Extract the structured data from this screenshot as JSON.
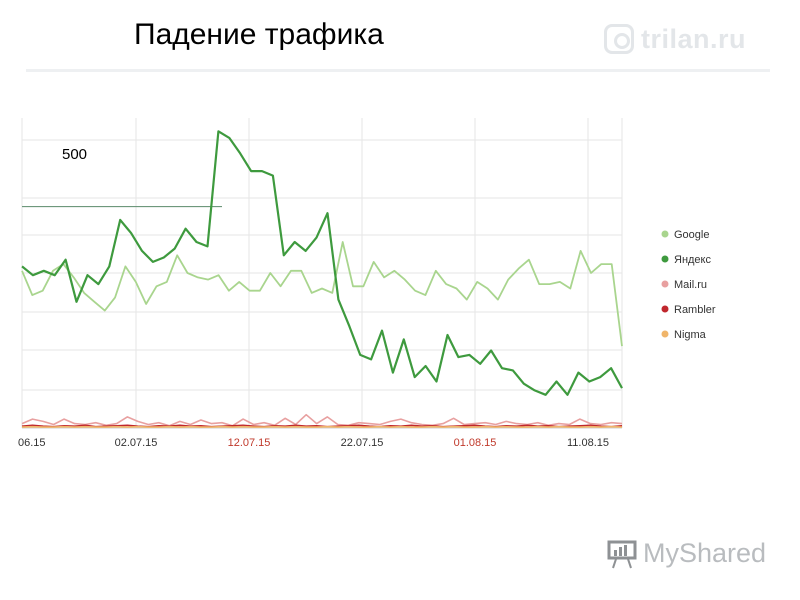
{
  "header": {
    "title": "Падение трафика"
  },
  "logo": {
    "text": "trilan.ru",
    "icon": "camera-logo-icon"
  },
  "watermark": {
    "text": "MyShared",
    "icon": "presentation-board-icon"
  },
  "chart_data": {
    "type": "line",
    "x_tick_labels": [
      "06.15",
      "02.07.15",
      "12.07.15",
      "22.07.15",
      "01.08.15",
      "11.08.15"
    ],
    "x_tick_colors": [
      "#333333",
      "#333333",
      "#c0392b",
      "#333333",
      "#c0392b",
      "#333333"
    ],
    "annotation": "500",
    "annotation_value": 500,
    "ylim": [
      0,
      700
    ],
    "grid": true,
    "legend_position": "right",
    "series": [
      {
        "name": "Google",
        "color": "#a9d58e",
        "values": [
          355,
          300,
          310,
          355,
          370,
          340,
          305,
          285,
          265,
          295,
          365,
          330,
          280,
          320,
          330,
          390,
          350,
          340,
          335,
          345,
          310,
          330,
          310,
          310,
          350,
          320,
          355,
          355,
          305,
          315,
          305,
          420,
          320,
          320,
          375,
          340,
          355,
          335,
          310,
          300,
          355,
          325,
          315,
          290,
          330,
          315,
          290,
          335,
          360,
          380,
          325,
          325,
          330,
          315,
          400,
          350,
          370,
          370,
          185
        ]
      },
      {
        "name": "Яндекс",
        "color": "#3e9a3e",
        "values": [
          365,
          345,
          355,
          345,
          380,
          285,
          345,
          325,
          365,
          470,
          440,
          400,
          375,
          385,
          405,
          450,
          420,
          410,
          670,
          655,
          620,
          580,
          580,
          570,
          390,
          420,
          400,
          430,
          485,
          290,
          230,
          165,
          155,
          220,
          125,
          200,
          115,
          140,
          105,
          210,
          160,
          165,
          145,
          175,
          135,
          130,
          100,
          85,
          75,
          105,
          75,
          125,
          105,
          115,
          135,
          90
        ]
      },
      {
        "name": "Mail.ru",
        "color": "#e8a0a0",
        "values": [
          10,
          20,
          15,
          8,
          20,
          10,
          8,
          12,
          6,
          10,
          25,
          15,
          8,
          12,
          5,
          15,
          8,
          18,
          10,
          12,
          5,
          20,
          8,
          12,
          6,
          22,
          8,
          30,
          10,
          25,
          8,
          6,
          12,
          10,
          8,
          15,
          20,
          12,
          8,
          6,
          10,
          22,
          8,
          10,
          12,
          8,
          15,
          10,
          8,
          12,
          6,
          10,
          8,
          20,
          10,
          8,
          12,
          10
        ]
      },
      {
        "name": "Rambler",
        "color": "#c0272d",
        "values": [
          4,
          6,
          4,
          3,
          5,
          4,
          6,
          3,
          4,
          5,
          6,
          4,
          3,
          5,
          4,
          6,
          4,
          5,
          3,
          4,
          5,
          6,
          4,
          3,
          5,
          4,
          6,
          4,
          5,
          3,
          4,
          5,
          6,
          4,
          3,
          5,
          4,
          6,
          4,
          5,
          3,
          4,
          5,
          6,
          4,
          3,
          5,
          4,
          6,
          4,
          5,
          3,
          4,
          5,
          6,
          4,
          3,
          5
        ]
      },
      {
        "name": "Nigma",
        "color": "#f0b56a",
        "values": [
          2,
          3,
          2,
          2,
          3,
          2,
          3,
          2,
          2,
          3,
          2,
          3,
          2,
          2,
          3,
          2,
          3,
          2,
          2,
          3,
          2,
          3,
          2,
          2,
          3,
          2,
          3,
          2,
          2,
          3,
          2,
          3,
          2,
          2,
          3,
          2,
          3,
          2,
          2,
          3,
          2,
          3,
          2,
          2,
          3,
          2,
          3,
          2,
          2,
          3,
          2,
          3,
          2,
          2,
          3,
          2,
          3,
          2
        ]
      }
    ]
  }
}
